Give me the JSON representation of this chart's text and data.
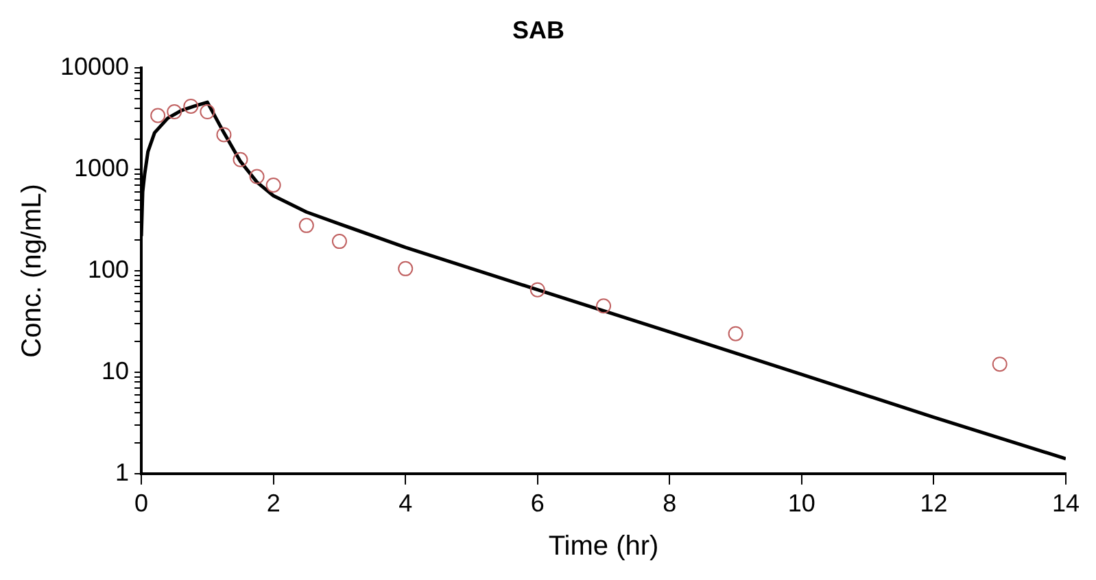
{
  "chart_data": {
    "type": "scatter",
    "title": "SAB",
    "xlabel": "Time (hr)",
    "ylabel": "Conc. (ng/mL)",
    "log": "y",
    "grid": false,
    "legend": false,
    "xlim": [
      0,
      14
    ],
    "xticks": [
      0,
      2,
      4,
      6,
      8,
      10,
      12,
      14
    ],
    "ylim": [
      1,
      10000
    ],
    "yticks": [
      1,
      {
        "value": 2,
        "label": null
      },
      {
        "value": 3,
        "label": null
      },
      {
        "value": 4,
        "label": null
      },
      {
        "value": 5,
        "label": null
      },
      {
        "value": 6,
        "label": null
      },
      {
        "value": 7,
        "label": null
      },
      {
        "value": 8,
        "label": null
      },
      {
        "value": 9,
        "label": null
      },
      10,
      {
        "value": 20,
        "label": null
      },
      {
        "value": 30,
        "label": null
      },
      {
        "value": 40,
        "label": null
      },
      {
        "value": 50,
        "label": null
      },
      {
        "value": 60,
        "label": null
      },
      {
        "value": 70,
        "label": null
      },
      {
        "value": 80,
        "label": null
      },
      {
        "value": 90,
        "label": null
      },
      100,
      {
        "value": 200,
        "label": null
      },
      {
        "value": 300,
        "label": null
      },
      {
        "value": 400,
        "label": null
      },
      {
        "value": 500,
        "label": null
      },
      {
        "value": 600,
        "label": null
      },
      {
        "value": 700,
        "label": null
      },
      {
        "value": 800,
        "label": null
      },
      {
        "value": 900,
        "label": null
      },
      1000,
      {
        "value": 2000,
        "label": null
      },
      {
        "value": 3000,
        "label": null
      },
      {
        "value": 4000,
        "label": null
      },
      {
        "value": 5000,
        "label": null
      },
      {
        "value": 6000,
        "label": null
      },
      {
        "value": 7000,
        "label": null
      },
      {
        "value": 8000,
        "label": null
      },
      {
        "value": 9000,
        "label": null
      },
      10000
    ],
    "series": [
      {
        "color": "#c06060",
        "marker": "circle",
        "x": [
          0.25,
          0.5,
          0.75,
          1,
          1.25,
          1.5,
          1.75,
          2,
          2.5,
          3,
          4,
          6,
          7,
          9,
          13
        ],
        "values": [
          3400,
          3700,
          4200,
          3700,
          2200,
          1250,
          850,
          700,
          280,
          195,
          105,
          65,
          45,
          24,
          12
        ]
      },
      {
        "type": "line",
        "color": "#000000",
        "marker": "none",
        "line_style": "solid",
        "x": [
          0,
          0.02,
          0.05,
          0.1,
          0.2,
          0.4,
          0.6,
          0.8,
          1,
          1.25,
          1.5,
          1.75,
          2,
          2.5,
          3,
          4,
          6,
          8,
          10,
          12,
          14
        ],
        "values": [
          220,
          600,
          900,
          1500,
          2300,
          3200,
          3800,
          4200,
          4600,
          2300,
          1200,
          750,
          550,
          380,
          290,
          170,
          65,
          25,
          9.5,
          3.6,
          1.4
        ]
      }
    ]
  }
}
